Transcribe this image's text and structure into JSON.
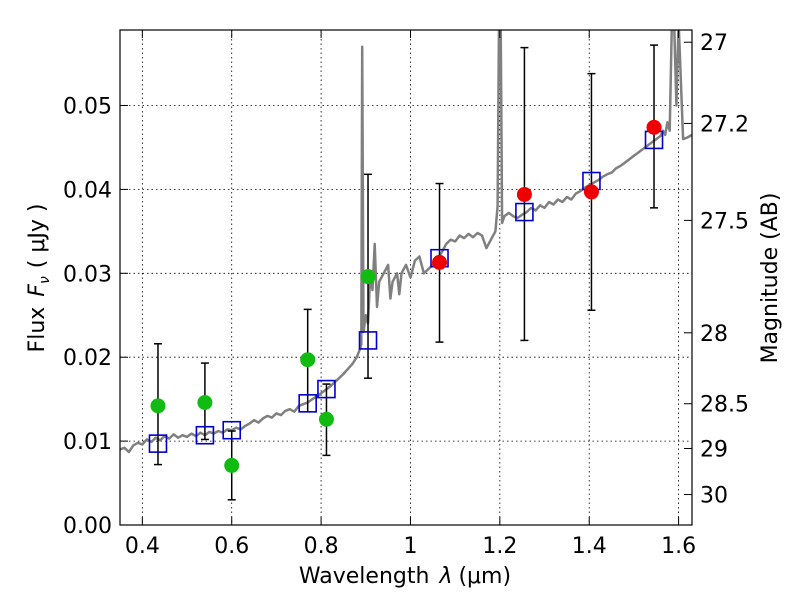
{
  "chart_data": {
    "type": "scatter",
    "xlabel_text": "Wavelength",
    "xlabel_symbol": "λ",
    "xlabel_unit": "(μm)",
    "ylabel_text": "Flux",
    "ylabel_symbol": "F",
    "ylabel_subscript": "ν",
    "ylabel_unit": "( μJy )",
    "y2label": "Magnitude (AB)",
    "xlim": [
      0.35,
      1.63
    ],
    "ylim": [
      0.0,
      0.059
    ],
    "xticks": [
      0.4,
      0.6,
      0.8,
      1.0,
      1.2,
      1.4,
      1.6
    ],
    "xtick_labels": [
      "0.4",
      "0.6",
      "0.8",
      "1",
      "1.2",
      "1.4",
      "1.6"
    ],
    "yticks": [
      0.0,
      0.01,
      0.02,
      0.03,
      0.04,
      0.05
    ],
    "ytick_labels": [
      "0.00",
      "0.01",
      "0.02",
      "0.03",
      "0.04",
      "0.05"
    ],
    "y2ticks": [
      {
        "label": "27",
        "value": 27.0
      },
      {
        "label": "27.2",
        "value": 27.2
      },
      {
        "label": "27.5",
        "value": 27.5
      },
      {
        "label": "28",
        "value": 28.0
      },
      {
        "label": "28.5",
        "value": 28.5
      },
      {
        "label": "29",
        "value": 29.0
      },
      {
        "label": "30",
        "value": 30.0
      }
    ],
    "colors": {
      "model": "#808080",
      "green": "#11bb11",
      "red": "#ee0000",
      "box": "#0000cc",
      "errorbar": "#000000"
    },
    "green_points": [
      {
        "x": 0.435,
        "y": 0.0142,
        "yerr_low": 0.0072,
        "yerr_high": 0.0216
      },
      {
        "x": 0.54,
        "y": 0.0146,
        "yerr_low": 0.0102,
        "yerr_high": 0.0193
      },
      {
        "x": 0.6,
        "y": 0.0071,
        "yerr_low": 0.003,
        "yerr_high": 0.0112
      },
      {
        "x": 0.77,
        "y": 0.0197,
        "yerr_low": 0.0135,
        "yerr_high": 0.0257
      },
      {
        "x": 0.812,
        "y": 0.0126,
        "yerr_low": 0.0083,
        "yerr_high": 0.0168
      },
      {
        "x": 0.905,
        "y": 0.0296,
        "yerr_low": 0.0175,
        "yerr_high": 0.0418
      }
    ],
    "red_points": [
      {
        "x": 1.065,
        "y": 0.0313,
        "yerr_low": 0.0218,
        "yerr_high": 0.0407
      },
      {
        "x": 1.255,
        "y": 0.0394,
        "yerr_low": 0.022,
        "yerr_high": 0.0569
      },
      {
        "x": 1.405,
        "y": 0.0397,
        "yerr_low": 0.0256,
        "yerr_high": 0.0538
      },
      {
        "x": 1.545,
        "y": 0.0474,
        "yerr_low": 0.0378,
        "yerr_high": 0.0572
      }
    ],
    "model_boxes": [
      {
        "x": 0.435,
        "y": 0.0097
      },
      {
        "x": 0.54,
        "y": 0.0107
      },
      {
        "x": 0.6,
        "y": 0.0113
      },
      {
        "x": 0.77,
        "y": 0.0145
      },
      {
        "x": 0.812,
        "y": 0.0162
      },
      {
        "x": 0.905,
        "y": 0.022
      },
      {
        "x": 1.065,
        "y": 0.0318
      },
      {
        "x": 1.255,
        "y": 0.0373
      },
      {
        "x": 1.405,
        "y": 0.041
      },
      {
        "x": 1.545,
        "y": 0.0459
      }
    ],
    "model_spectrum": [
      [
        0.35,
        0.009
      ],
      [
        0.36,
        0.0092
      ],
      [
        0.37,
        0.0087
      ],
      [
        0.38,
        0.0095
      ],
      [
        0.39,
        0.0098
      ],
      [
        0.4,
        0.0096
      ],
      [
        0.41,
        0.0102
      ],
      [
        0.42,
        0.0099
      ],
      [
        0.43,
        0.0104
      ],
      [
        0.44,
        0.0101
      ],
      [
        0.45,
        0.0106
      ],
      [
        0.46,
        0.0103
      ],
      [
        0.47,
        0.0108
      ],
      [
        0.48,
        0.0104
      ],
      [
        0.49,
        0.0107
      ],
      [
        0.5,
        0.0105
      ],
      [
        0.51,
        0.0109
      ],
      [
        0.52,
        0.0106
      ],
      [
        0.53,
        0.011
      ],
      [
        0.54,
        0.0107
      ],
      [
        0.55,
        0.0111
      ],
      [
        0.56,
        0.0109
      ],
      [
        0.57,
        0.0112
      ],
      [
        0.58,
        0.011
      ],
      [
        0.59,
        0.0114
      ],
      [
        0.6,
        0.0113
      ],
      [
        0.61,
        0.0116
      ],
      [
        0.62,
        0.0114
      ],
      [
        0.63,
        0.0118
      ],
      [
        0.64,
        0.0121
      ],
      [
        0.65,
        0.0125
      ],
      [
        0.66,
        0.0122
      ],
      [
        0.67,
        0.0127
      ],
      [
        0.68,
        0.013
      ],
      [
        0.69,
        0.0128
      ],
      [
        0.7,
        0.0133
      ],
      [
        0.71,
        0.0131
      ],
      [
        0.72,
        0.0136
      ],
      [
        0.73,
        0.0138
      ],
      [
        0.74,
        0.0135
      ],
      [
        0.75,
        0.0142
      ],
      [
        0.76,
        0.0144
      ],
      [
        0.77,
        0.0146
      ],
      [
        0.78,
        0.015
      ],
      [
        0.79,
        0.0153
      ],
      [
        0.8,
        0.0157
      ],
      [
        0.81,
        0.0161
      ],
      [
        0.82,
        0.0165
      ],
      [
        0.83,
        0.017
      ],
      [
        0.84,
        0.0175
      ],
      [
        0.85,
        0.018
      ],
      [
        0.86,
        0.0186
      ],
      [
        0.87,
        0.0192
      ],
      [
        0.88,
        0.02
      ],
      [
        0.885,
        0.0207
      ],
      [
        0.89,
        0.0215
      ],
      [
        0.892,
        0.057
      ],
      [
        0.895,
        0.023
      ],
      [
        0.9,
        0.025
      ],
      [
        0.905,
        0.024
      ],
      [
        0.91,
        0.03
      ],
      [
        0.915,
        0.028
      ],
      [
        0.92,
        0.0335
      ],
      [
        0.925,
        0.026
      ],
      [
        0.93,
        0.029
      ],
      [
        0.94,
        0.03
      ],
      [
        0.95,
        0.031
      ],
      [
        0.955,
        0.027
      ],
      [
        0.96,
        0.029
      ],
      [
        0.97,
        0.03
      ],
      [
        0.975,
        0.0275
      ],
      [
        0.98,
        0.03
      ],
      [
        0.99,
        0.031
      ],
      [
        1.0,
        0.0295
      ],
      [
        1.01,
        0.0315
      ],
      [
        1.02,
        0.032
      ],
      [
        1.03,
        0.03
      ],
      [
        1.04,
        0.0305
      ],
      [
        1.05,
        0.031
      ],
      [
        1.06,
        0.0318
      ],
      [
        1.07,
        0.0325
      ],
      [
        1.08,
        0.0335
      ],
      [
        1.09,
        0.034
      ],
      [
        1.1,
        0.0338
      ],
      [
        1.11,
        0.0345
      ],
      [
        1.12,
        0.0342
      ],
      [
        1.13,
        0.0347
      ],
      [
        1.14,
        0.0343
      ],
      [
        1.15,
        0.0348
      ],
      [
        1.16,
        0.0345
      ],
      [
        1.17,
        0.033
      ],
      [
        1.18,
        0.034
      ],
      [
        1.19,
        0.035
      ],
      [
        1.195,
        0.038
      ],
      [
        1.198,
        0.06
      ],
      [
        1.202,
        0.06
      ],
      [
        1.205,
        0.036
      ],
      [
        1.21,
        0.0368
      ],
      [
        1.22,
        0.0372
      ],
      [
        1.23,
        0.0368
      ],
      [
        1.24,
        0.0366
      ],
      [
        1.25,
        0.037
      ],
      [
        1.26,
        0.0373
      ],
      [
        1.27,
        0.0378
      ],
      [
        1.28,
        0.0375
      ],
      [
        1.29,
        0.0381
      ],
      [
        1.3,
        0.0378
      ],
      [
        1.31,
        0.0385
      ],
      [
        1.32,
        0.0382
      ],
      [
        1.33,
        0.0388
      ],
      [
        1.34,
        0.0385
      ],
      [
        1.35,
        0.0391
      ],
      [
        1.36,
        0.0388
      ],
      [
        1.37,
        0.0395
      ],
      [
        1.38,
        0.0398
      ],
      [
        1.39,
        0.0402
      ],
      [
        1.4,
        0.0405
      ],
      [
        1.41,
        0.0408
      ],
      [
        1.42,
        0.0411
      ],
      [
        1.43,
        0.0415
      ],
      [
        1.44,
        0.0418
      ],
      [
        1.45,
        0.042
      ],
      [
        1.46,
        0.0425
      ],
      [
        1.47,
        0.0428
      ],
      [
        1.48,
        0.0432
      ],
      [
        1.49,
        0.0436
      ],
      [
        1.5,
        0.044
      ],
      [
        1.51,
        0.0444
      ],
      [
        1.52,
        0.0448
      ],
      [
        1.53,
        0.0452
      ],
      [
        1.54,
        0.0456
      ],
      [
        1.55,
        0.046
      ],
      [
        1.56,
        0.0464
      ],
      [
        1.565,
        0.047
      ],
      [
        1.57,
        0.0465
      ],
      [
        1.575,
        0.048
      ],
      [
        1.58,
        0.047
      ],
      [
        1.585,
        0.06
      ],
      [
        1.59,
        0.06
      ],
      [
        1.595,
        0.05
      ],
      [
        1.6,
        0.06
      ],
      [
        1.61,
        0.046
      ],
      [
        1.62,
        0.0462
      ],
      [
        1.63,
        0.0465
      ]
    ]
  }
}
